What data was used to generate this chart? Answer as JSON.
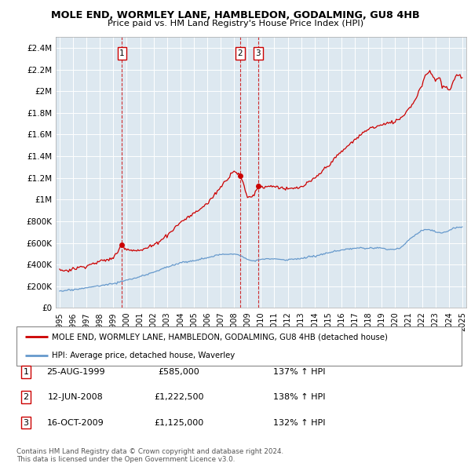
{
  "title": "MOLE END, WORMLEY LANE, HAMBLEDON, GODALMING, GU8 4HB",
  "subtitle": "Price paid vs. HM Land Registry's House Price Index (HPI)",
  "legend_property": "MOLE END, WORMLEY LANE, HAMBLEDON, GODALMING, GU8 4HB (detached house)",
  "legend_hpi": "HPI: Average price, detached house, Waverley",
  "footer1": "Contains HM Land Registry data © Crown copyright and database right 2024.",
  "footer2": "This data is licensed under the Open Government Licence v3.0.",
  "sale_color": "#cc0000",
  "hpi_color": "#6699cc",
  "bg_color": "#dde8f0",
  "ylim": [
    0,
    2500000
  ],
  "yticks": [
    0,
    200000,
    400000,
    600000,
    800000,
    1000000,
    1200000,
    1400000,
    1600000,
    1800000,
    2000000,
    2200000,
    2400000
  ],
  "ytick_labels": [
    "£0",
    "£200K",
    "£400K",
    "£600K",
    "£800K",
    "£1M",
    "£1.2M",
    "£1.4M",
    "£1.6M",
    "£1.8M",
    "£2M",
    "£2.2M",
    "£2.4M"
  ],
  "sales": [
    {
      "label": "1",
      "date_x": 1999.65,
      "price": 585000,
      "date_str": "25-AUG-1999",
      "price_str": "£585,000",
      "hpi_str": "137% ↑ HPI"
    },
    {
      "label": "2",
      "date_x": 2008.44,
      "price": 1222500,
      "date_str": "12-JUN-2008",
      "price_str": "£1,222,500",
      "hpi_str": "138% ↑ HPI"
    },
    {
      "label": "3",
      "date_x": 2009.79,
      "price": 1125000,
      "date_str": "16-OCT-2009",
      "price_str": "£1,125,000",
      "hpi_str": "132% ↑ HPI"
    }
  ],
  "xlim": [
    1994.7,
    2025.3
  ],
  "xticks": [
    1995,
    1996,
    1997,
    1998,
    1999,
    2000,
    2001,
    2002,
    2003,
    2004,
    2005,
    2006,
    2007,
    2008,
    2009,
    2010,
    2011,
    2012,
    2013,
    2014,
    2015,
    2016,
    2017,
    2018,
    2019,
    2020,
    2021,
    2022,
    2023,
    2024,
    2025
  ]
}
